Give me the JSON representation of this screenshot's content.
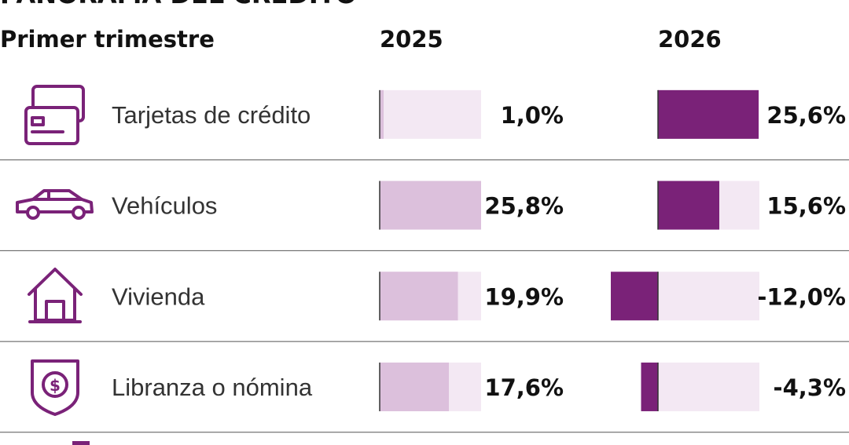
{
  "chart_data": {
    "type": "bar",
    "title": "PANORAMA DEL CRÉDITO",
    "category_header": "Primer trimestre",
    "categories": [
      "Tarjetas de crédito",
      "Vehículos",
      "Vivienda",
      "Libranza o nómina"
    ],
    "series": [
      {
        "name": "2025",
        "color": "#dcc0dc",
        "values": [
          1.0,
          25.8,
          19.9,
          17.6
        ],
        "value_labels": [
          "1,0%",
          "25,8%",
          "19,9%",
          "17,6%"
        ]
      },
      {
        "name": "2026",
        "color": "#7a2278",
        "values": [
          25.6,
          15.6,
          -12.0,
          -4.3
        ],
        "value_labels": [
          "25,6%",
          "15,6%",
          "-12,0%",
          "-4,3%"
        ]
      }
    ]
  }
}
